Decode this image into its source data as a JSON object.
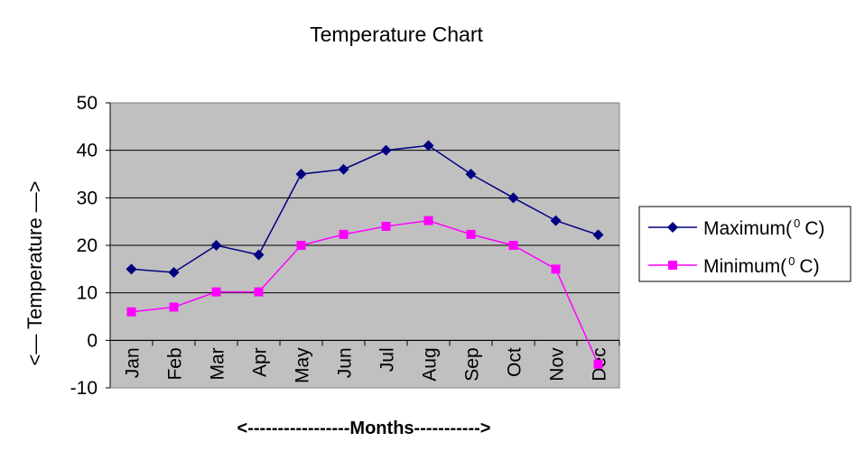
{
  "chart_data": {
    "type": "line",
    "title": "Temperature Chart",
    "xlabel": "<-----------------Months----------->",
    "ylabel": "<— Temperature —>",
    "categories": [
      "Jan",
      "Feb",
      "Mar",
      "Apr",
      "May",
      "Jun",
      "Jul",
      "Aug",
      "Sep",
      "Oct",
      "Nov",
      "Dec"
    ],
    "ylim": [
      -10,
      50
    ],
    "yticks": [
      50,
      40,
      30,
      20,
      10,
      0,
      -10
    ],
    "grid": true,
    "legend": "right",
    "plot_background": "#c0c0c0",
    "series": [
      {
        "name": "Maximum(⁰C)",
        "name_main": "Maximum(",
        "name_sup": "0",
        "name_rest": "C)",
        "color": "#000080",
        "marker": "diamond",
        "values": [
          15,
          14.3,
          20,
          18,
          35,
          36,
          40,
          41,
          35,
          30,
          25.2,
          22.2
        ]
      },
      {
        "name": "Minimum(⁰C)",
        "name_main": "Minimum(",
        "name_sup": "0",
        "name_rest": "C)",
        "color": "#ff00ff",
        "marker": "square",
        "values": [
          6,
          7,
          10.2,
          10.2,
          20,
          22.3,
          24,
          25.2,
          22.3,
          20,
          15,
          -5
        ]
      }
    ]
  }
}
